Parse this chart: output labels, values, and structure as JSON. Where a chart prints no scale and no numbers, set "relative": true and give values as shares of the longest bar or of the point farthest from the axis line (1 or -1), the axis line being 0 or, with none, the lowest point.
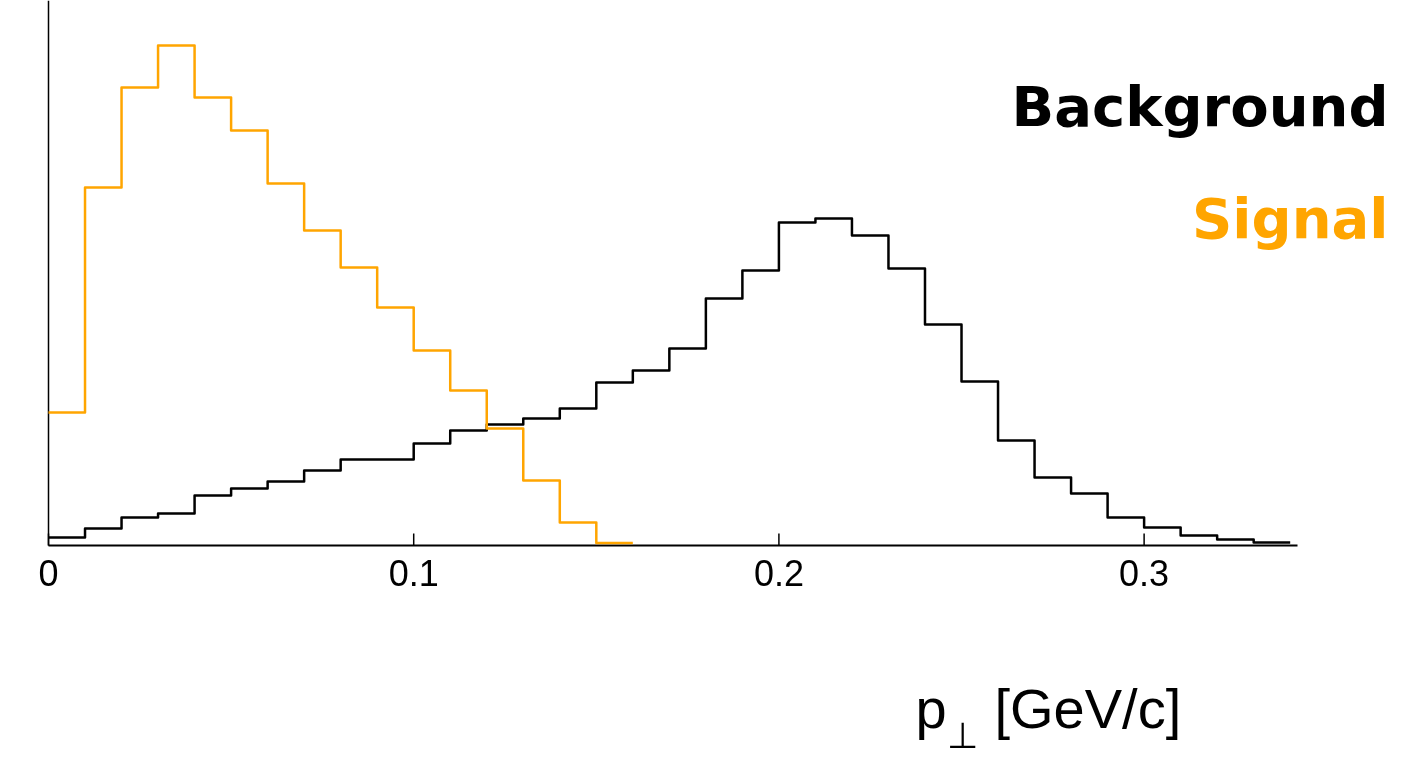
{
  "chart_data": {
    "type": "step",
    "relative": true,
    "xlabel": "p$_{⊥}$ [GeV/c]",
    "xlim": [
      0,
      0.342
    ],
    "xticks": [
      0,
      0.1,
      0.2,
      0.3
    ],
    "grid": false,
    "tick_labels": "x",
    "legend": "top right",
    "series": [
      {
        "name": "Background",
        "color": "#000000",
        "x": [
          0,
          0.01,
          0.02,
          0.03,
          0.04,
          0.05,
          0.06,
          0.07,
          0.08,
          0.09,
          0.1,
          0.11,
          0.12,
          0.13,
          0.14,
          0.15,
          0.16,
          0.17,
          0.18,
          0.19,
          0.2,
          0.21,
          0.22,
          0.23,
          0.24,
          0.25,
          0.26,
          0.27,
          0.28,
          0.29,
          0.3,
          0.31,
          0.32,
          0.33,
          0.34
        ],
        "values": [
          0.016,
          0.034,
          0.056,
          0.064,
          0.1,
          0.114,
          0.128,
          0.15,
          0.172,
          0.172,
          0.204,
          0.23,
          0.242,
          0.254,
          0.274,
          0.326,
          0.35,
          0.394,
          0.494,
          0.55,
          0.646,
          0.654,
          0.62,
          0.554,
          0.442,
          0.328,
          0.21,
          0.136,
          0.104,
          0.056,
          0.036,
          0.02,
          0.012,
          0.006,
          0.006
        ]
      },
      {
        "name": "Signal",
        "color": "#ffa500",
        "x": [
          0,
          0.01,
          0.02,
          0.03,
          0.04,
          0.05,
          0.06,
          0.07,
          0.08,
          0.09,
          0.1,
          0.11,
          0.12,
          0.13,
          0.14,
          0.15,
          0.16
        ],
        "values": [
          0.266,
          0.716,
          0.916,
          1.0,
          0.896,
          0.83,
          0.724,
          0.63,
          0.556,
          0.476,
          0.39,
          0.31,
          0.234,
          0.13,
          0.046,
          0.005,
          0.005
        ]
      }
    ]
  }
}
